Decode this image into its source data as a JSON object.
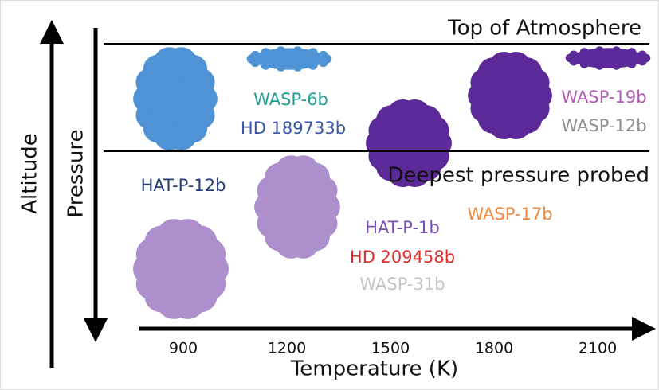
{
  "axes": {
    "altitude": "Altitude",
    "pressure": "Pressure",
    "temperature": "Temperature (K)",
    "ticks": [
      "900",
      "1200",
      "1500",
      "1800",
      "2100"
    ]
  },
  "levels": {
    "top": "Top of Atmosphere",
    "deepest": "Deepest pressure probed"
  },
  "planets": [
    "WASP-6b",
    "HD 189733b",
    "WASP-19b",
    "WASP-12b",
    "HAT-P-12b",
    "HAT-P-1b",
    "HD 209458b",
    "WASP-31b",
    "WASP-17b"
  ]
}
